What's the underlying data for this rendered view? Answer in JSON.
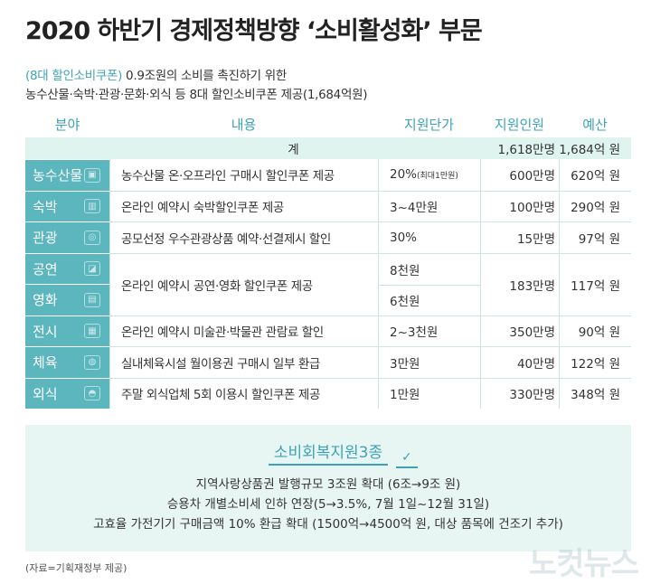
{
  "title": "2020 하반기 경제정책방향 ‘소비활성화’ 부문",
  "intro": {
    "tag": "(8대 할인소비쿠폰)",
    "line1_rest": " 0.9조원의 소비를 촉진하기 위한",
    "line2": "농수산물·숙박·관광·문화·외식 등 8대 할인소비쿠폰 제공(1,684억원)"
  },
  "table": {
    "headers": [
      "분야",
      "내용",
      "지원단가",
      "지원인원",
      "예산"
    ],
    "total": {
      "label": "계",
      "people": "1,618만명",
      "budget": "1,684억 원"
    },
    "rows": [
      {
        "category": "농수산물",
        "icon": "basket-icon",
        "desc": "농수산물 온·오프라인 구매시 할인쿠폰 제공",
        "unit": "20%",
        "unit_note": "(최대1만원)",
        "people": "600만명",
        "budget": "620억 원"
      },
      {
        "category": "숙박",
        "icon": "hotel-icon",
        "desc": "온라인 예약시 숙박할인쿠폰 제공",
        "unit": "3~4만원",
        "people": "100만명",
        "budget": "290억 원"
      },
      {
        "category": "관광",
        "icon": "map-pin-icon",
        "desc": "공모선정 우수관광상품 예약·선결제시 할인",
        "unit": "30%",
        "people": "15만명",
        "budget": "97억 원"
      }
    ],
    "merged": {
      "categories": [
        {
          "category": "공연",
          "icon": "stage-icon"
        },
        {
          "category": "영화",
          "icon": "film-icon"
        }
      ],
      "desc": "온라인 예약시 공연·영화 할인쿠폰 제공",
      "units": [
        "8천원",
        "6천원"
      ],
      "people": "183만명",
      "budget": "117억 원"
    },
    "rows2": [
      {
        "category": "전시",
        "icon": "gallery-icon",
        "desc": "온라인 예약시 미술관·박물관 관람료 할인",
        "unit": "2~3천원",
        "people": "350만명",
        "budget": "90억 원"
      },
      {
        "category": "체육",
        "icon": "sports-icon",
        "desc": "실내체육시설 월이용권 구매시 일부 환급",
        "unit": "3만원",
        "people": "40만명",
        "budget": "122억 원"
      },
      {
        "category": "외식",
        "icon": "dining-icon",
        "desc": "주말 외식업체 5회 이용시 할인쿠폰 제공",
        "unit": "1만원",
        "people": "330만명",
        "budget": "348억 원"
      }
    ]
  },
  "box": {
    "title": "소비회복지원3종",
    "lines": [
      "지역사랑상품권 발행규모 3조원 확대 (6조→9조 원)",
      "승용차 개별소비세 인하 연장(5→3.5%, 7월 1일~12월 31일)",
      "고효율 가전기기 구매금액 10% 환급 확대 (1500억→4500억 원, 대상 품목에 건조기 추가)"
    ]
  },
  "source": "(자료=기획재정부 제공)",
  "watermark": "노컷뉴스",
  "colors": {
    "accent": "#3ea3b5",
    "category_bg": "#5bb6bd",
    "total_bg": "#dff3ef",
    "box_bg": "#e8f6f3"
  }
}
